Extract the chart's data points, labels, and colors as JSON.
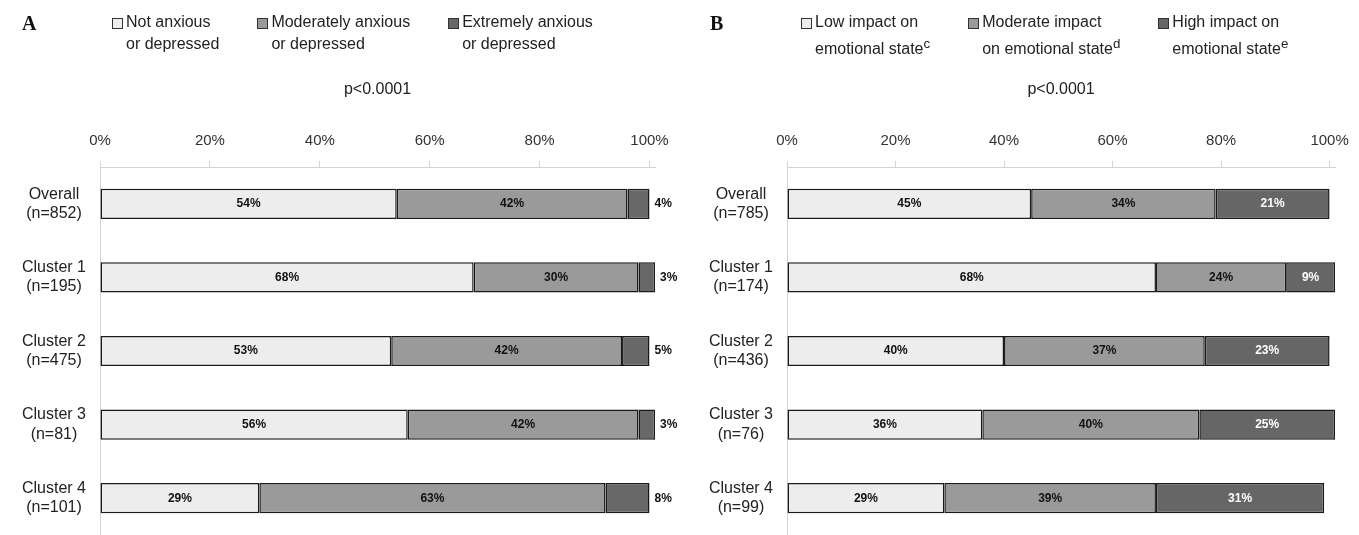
{
  "chart_data": [
    {
      "type": "bar",
      "orientation": "horizontal",
      "stacked": true,
      "title": "A",
      "subtitle": "p<0.0001",
      "legend": "top",
      "grid": false,
      "categories": [
        "Overall (n=852)",
        "Cluster 1 (n=195)",
        "Cluster 2 (n=475)",
        "Cluster 3 (n=81)",
        "Cluster 4 (n=101)"
      ],
      "series": [
        {
          "name": "Not anxious or depressed",
          "color": "#ededed",
          "values": [
            54,
            68,
            53,
            56,
            29
          ],
          "value_labels": [
            "54%",
            "68%",
            "53%",
            "56%",
            "29%"
          ]
        },
        {
          "name": "Moderately anxious or depressed",
          "color": "#9a9a9a",
          "values": [
            42,
            30,
            42,
            42,
            63
          ],
          "value_labels": [
            "42%",
            "30%",
            "42%",
            "42%",
            "63%"
          ]
        },
        {
          "name": "Extremely anxious or depressed",
          "color": "#686868",
          "values": [
            4,
            3,
            5,
            3,
            8
          ],
          "value_labels": [
            "4%",
            "3%",
            "5%",
            "3%",
            "8%"
          ]
        }
      ],
      "xlim": [
        0,
        101
      ],
      "xticks": [
        {
          "value": 0,
          "label": "0%"
        },
        {
          "value": 20,
          "label": "20%"
        },
        {
          "value": 40,
          "label": "40%"
        },
        {
          "value": 60,
          "label": "60%"
        },
        {
          "value": 80,
          "label": "80%"
        },
        {
          "value": 100,
          "label": "100%"
        }
      ]
    },
    {
      "type": "bar",
      "orientation": "horizontal",
      "stacked": true,
      "title": "B",
      "subtitle": "p<0.0001",
      "legend": "top",
      "grid": false,
      "categories": [
        "Overall (n=785)",
        "Cluster 1 (n=174)",
        "Cluster 2 (n=436)",
        "Cluster 3 (n=76)",
        "Cluster 4 (n=99)"
      ],
      "series": [
        {
          "name": "Low impact on emotional state$^{c}$",
          "color": "#ededed",
          "values": [
            45,
            68,
            40,
            36,
            29
          ],
          "value_labels": [
            "45%",
            "68%",
            "40%",
            "36%",
            "29%"
          ]
        },
        {
          "name": "Moderate impact on emotional state$^{d}$",
          "color": "#9a9a9a",
          "values": [
            34,
            24,
            37,
            40,
            39
          ],
          "value_labels": [
            "34%",
            "24%",
            "37%",
            "40%",
            "39%"
          ]
        },
        {
          "name": "High impact on emotional state$^{e}$",
          "color": "#666666",
          "values": [
            21,
            9,
            23,
            25,
            31
          ],
          "value_labels": [
            "21%",
            "9%",
            "23%",
            "25%",
            "31%"
          ]
        }
      ],
      "xlim": [
        0,
        101
      ],
      "xticks": [
        {
          "value": 0,
          "label": "0%"
        },
        {
          "value": 20,
          "label": "20%"
        },
        {
          "value": 40,
          "label": "40%"
        },
        {
          "value": 60,
          "label": "60%"
        },
        {
          "value": 80,
          "label": "80%"
        },
        {
          "value": 100,
          "label": "100%"
        }
      ]
    }
  ]
}
